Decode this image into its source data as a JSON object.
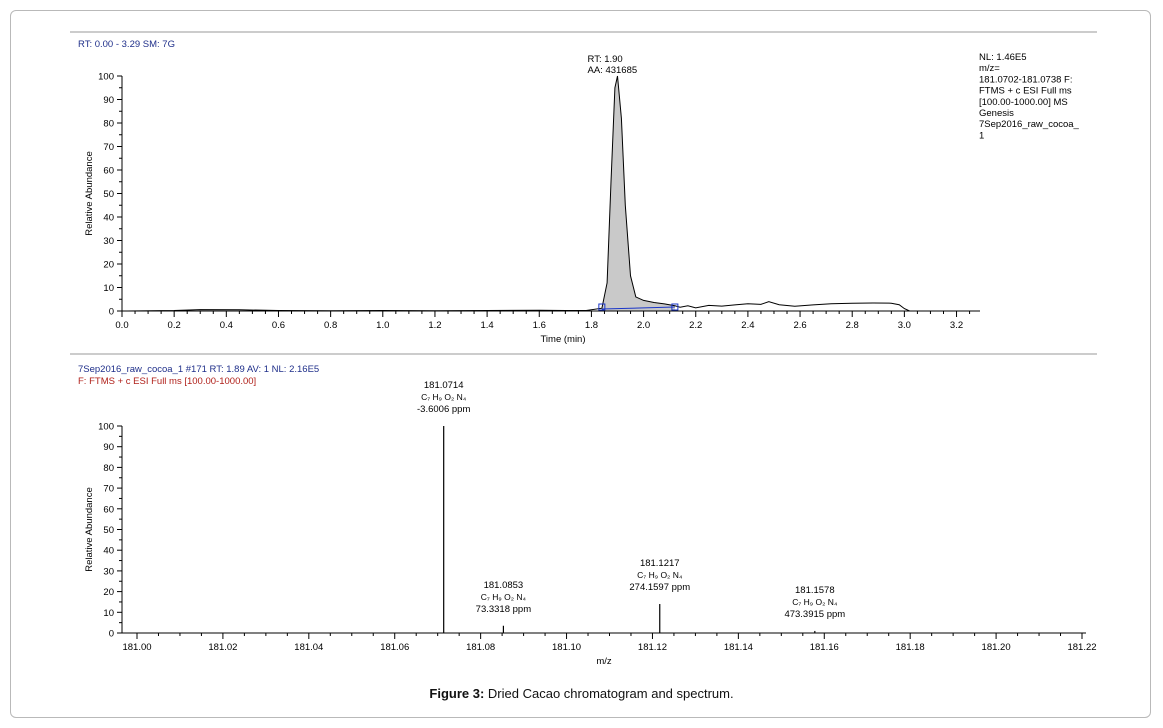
{
  "colors": {
    "header_blue": "#1f2f8a",
    "header_red": "#b0201a",
    "axis": "#000000",
    "peak_fill": "#c9c9c9",
    "peak_marker": "#1a35c8",
    "divider": "#9a9a9a"
  },
  "caption": {
    "label": "Figure 3:",
    "text": "Dried Cacao chromatogram and spectrum."
  },
  "chart_data": [
    {
      "type": "line",
      "header": "RT: 0.00 - 3.29   SM: 7G",
      "xlabel": "Time (min)",
      "ylabel": "Relative Abundance",
      "xlim": [
        0.0,
        3.29
      ],
      "ylim": [
        0,
        100
      ],
      "x_ticks": [
        "0.0",
        "0.2",
        "0.4",
        "0.6",
        "0.8",
        "1.0",
        "1.2",
        "1.4",
        "1.6",
        "1.8",
        "2.0",
        "2.2",
        "2.4",
        "2.6",
        "2.8",
        "3.0",
        "3.2"
      ],
      "y_ticks": [
        "0",
        "10",
        "20",
        "30",
        "40",
        "50",
        "60",
        "70",
        "80",
        "90",
        "100"
      ],
      "peak_label": [
        "RT: 1.90",
        "AA: 431685"
      ],
      "peak_rt": 1.9,
      "integration_markers": [
        1.84,
        2.12
      ],
      "info_text": [
        "NL: 1.46E5",
        "m/z=",
        "181.0702-181.0738 F:",
        "FTMS + c ESI Full ms",
        "[100.00-1000.00]  MS",
        "Genesis",
        "7Sep2016_raw_cocoa_",
        "1"
      ],
      "trace": [
        [
          0.0,
          0.0
        ],
        [
          0.2,
          0.2
        ],
        [
          0.3,
          0.6
        ],
        [
          0.45,
          0.5
        ],
        [
          0.6,
          0.2
        ],
        [
          0.8,
          0.1
        ],
        [
          1.0,
          0.2
        ],
        [
          1.2,
          0.1
        ],
        [
          1.4,
          0.2
        ],
        [
          1.6,
          0.3
        ],
        [
          1.7,
          0.2
        ],
        [
          1.78,
          0.2
        ],
        [
          1.84,
          1.2
        ],
        [
          1.86,
          12
        ],
        [
          1.875,
          55
        ],
        [
          1.89,
          95
        ],
        [
          1.9,
          100
        ],
        [
          1.915,
          82
        ],
        [
          1.93,
          45
        ],
        [
          1.95,
          15
        ],
        [
          1.97,
          6
        ],
        [
          2.0,
          4.5
        ],
        [
          2.04,
          3.6
        ],
        [
          2.08,
          3.0
        ],
        [
          2.12,
          2.2
        ],
        [
          2.14,
          1.6
        ],
        [
          2.17,
          2.2
        ],
        [
          2.2,
          1.3
        ],
        [
          2.25,
          2.4
        ],
        [
          2.3,
          2.1
        ],
        [
          2.35,
          2.6
        ],
        [
          2.4,
          3.1
        ],
        [
          2.45,
          2.8
        ],
        [
          2.48,
          4.0
        ],
        [
          2.52,
          2.7
        ],
        [
          2.58,
          2.0
        ],
        [
          2.65,
          2.6
        ],
        [
          2.72,
          3.1
        ],
        [
          2.8,
          3.3
        ],
        [
          2.88,
          3.4
        ],
        [
          2.95,
          3.3
        ],
        [
          2.98,
          2.7
        ],
        [
          3.0,
          1.0
        ],
        [
          3.02,
          0.0
        ],
        [
          3.29,
          0.0
        ]
      ]
    },
    {
      "type": "bar",
      "header_line1": "7Sep2016_raw_cocoa_1 #171   RT: 1.89   AV: 1   NL: 2.16E5",
      "header_line2": "F: FTMS + c ESI Full ms [100.00-1000.00]",
      "xlabel": "m/z",
      "ylabel": "Relative Abundance",
      "xlim": [
        181.0,
        181.22
      ],
      "ylim": [
        0,
        100
      ],
      "x_ticks": [
        "181.00",
        "181.02",
        "181.04",
        "181.06",
        "181.08",
        "181.10",
        "181.12",
        "181.14",
        "181.16",
        "181.18",
        "181.20",
        "181.22"
      ],
      "y_ticks": [
        "0",
        "10",
        "20",
        "30",
        "40",
        "50",
        "60",
        "70",
        "80",
        "90",
        "100"
      ],
      "peaks": [
        {
          "mz": 181.0714,
          "value": 100,
          "mz_label": "181.0714",
          "formula": "C₇ H₉ O₂ N₄",
          "ppm": "-3.6006 ppm"
        },
        {
          "mz": 181.0853,
          "value": 3.5,
          "mz_label": "181.0853",
          "formula": "C₇ H₉ O₂ N₄",
          "ppm": "73.3318 ppm"
        },
        {
          "mz": 181.1217,
          "value": 14,
          "mz_label": "181.1217",
          "formula": "C₇ H₉ O₂ N₄",
          "ppm": "274.1597 ppm"
        },
        {
          "mz": 181.1578,
          "value": 1,
          "mz_label": "181.1578",
          "formula": "C₇ H₉ O₂ N₄",
          "ppm": "473.3915 ppm"
        }
      ]
    }
  ]
}
